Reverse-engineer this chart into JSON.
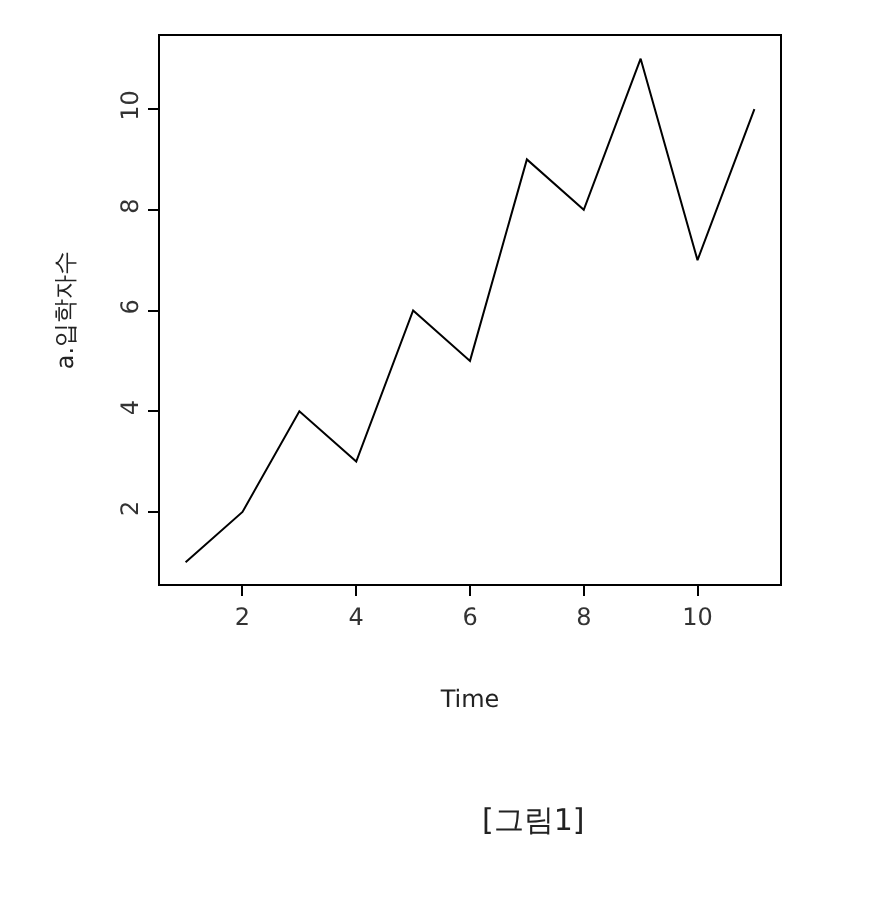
{
  "chart_data": {
    "type": "line",
    "xlabel": "Time",
    "ylabel": "a.입학자수",
    "x": [
      1,
      2,
      3,
      4,
      5,
      6,
      7,
      8,
      9,
      10,
      11
    ],
    "series": [
      {
        "color": "#000000",
        "values": [
          1,
          2,
          4,
          3,
          6,
          5,
          9,
          8,
          11,
          7,
          10
        ]
      }
    ],
    "xlim": [
      0.55,
      11.45
    ],
    "xticks": [
      2,
      4,
      6,
      8,
      10
    ],
    "ylim": [
      0.57,
      11.45
    ],
    "yticks": [
      2,
      4,
      6,
      8,
      10
    ],
    "grid": false,
    "legend": false,
    "marker": "none",
    "line_style": "solid",
    "annotations": [
      "[그림1]"
    ]
  }
}
